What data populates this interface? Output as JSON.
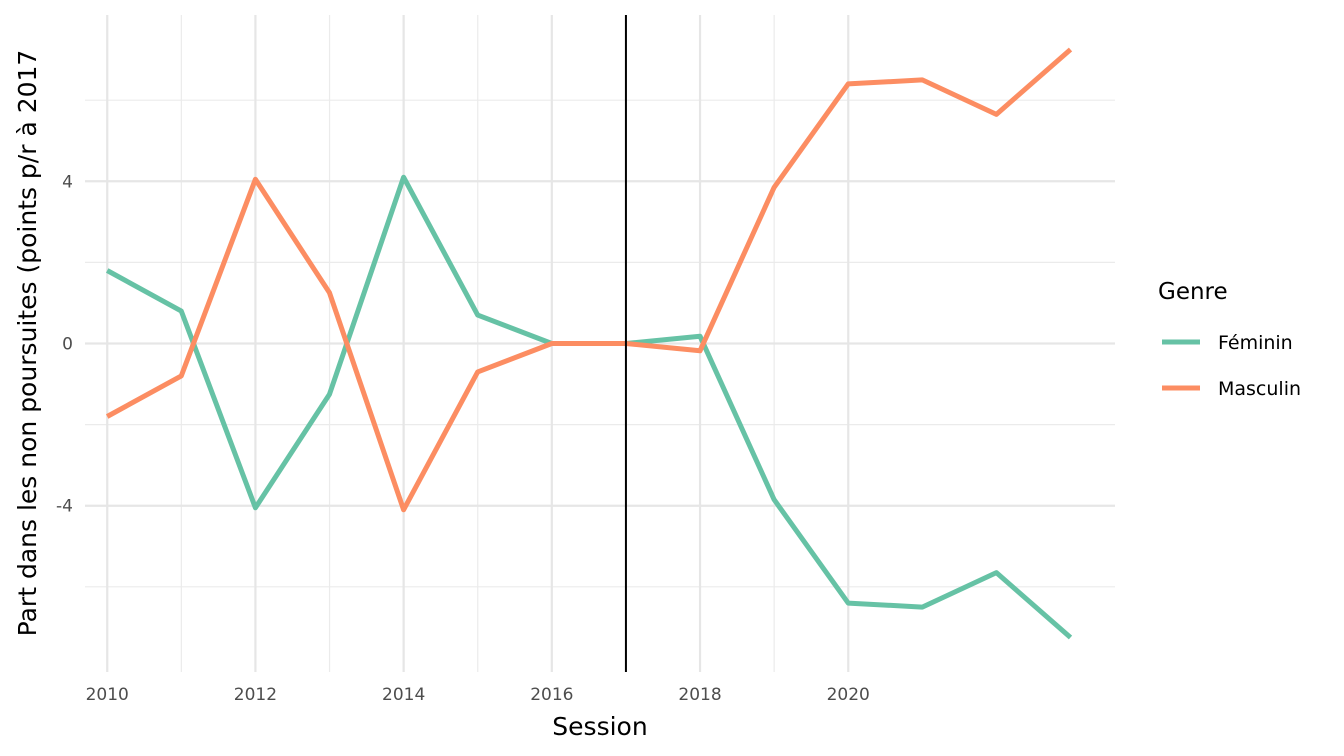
{
  "chart_data": {
    "type": "line",
    "xlabel": "Session",
    "ylabel": "Part dans les non poursuites (points p/r à 2017",
    "x": [
      2010,
      2011,
      2012,
      2013,
      2014,
      2015,
      2016,
      2017,
      2018,
      2019,
      2020,
      2021,
      2022,
      2023
    ],
    "x_ticks": [
      2010,
      2012,
      2014,
      2016,
      2018,
      2020
    ],
    "y_ticks": [
      -4,
      0,
      4
    ],
    "xlim": [
      2009.7,
      2023.6
    ],
    "ylim": [
      -8.1,
      8.1
    ],
    "reference_line_x": 2017,
    "grid": true,
    "legend_title": "Genre",
    "legend_position": "right",
    "series": [
      {
        "name": "Féminin",
        "color": "#66c2a5",
        "values": [
          1.8,
          0.8,
          -4.05,
          -1.25,
          4.1,
          0.7,
          0.0,
          0.0,
          0.18,
          -3.85,
          -6.4,
          -6.5,
          -5.65,
          -7.25
        ]
      },
      {
        "name": "Masculin",
        "color": "#fc8d62",
        "values": [
          -1.8,
          -0.8,
          4.05,
          1.25,
          -4.1,
          -0.7,
          0.0,
          0.0,
          -0.18,
          3.85,
          6.4,
          6.5,
          5.65,
          7.25
        ]
      }
    ]
  }
}
